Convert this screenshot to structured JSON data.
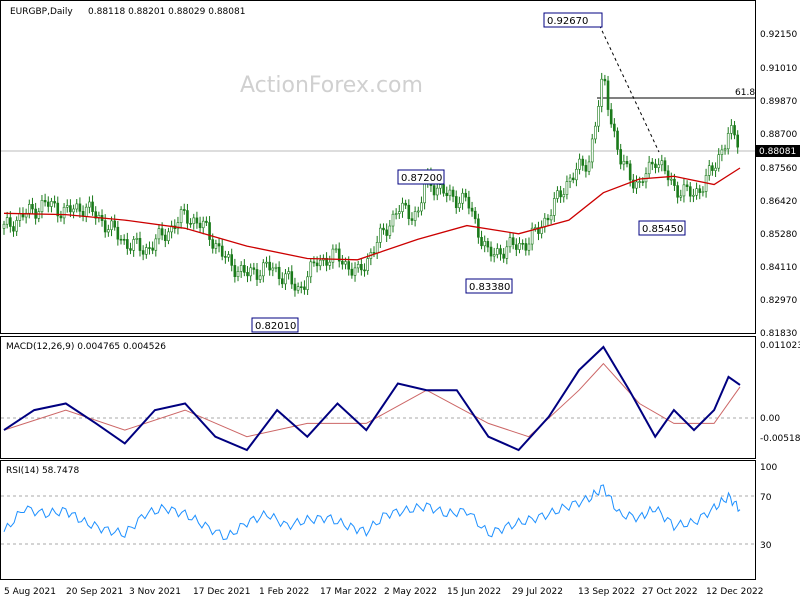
{
  "header": {
    "symbol": "EURGBP,Daily",
    "ohlc": "0.88118 0.88201 0.88029 0.88081"
  },
  "watermark": "ActionForex.com",
  "colors": {
    "candle": "#1a7a1a",
    "ma": "#cc0000",
    "macd": "#000080",
    "signal": "#cc6666",
    "rsi": "#1e90ff",
    "level_line": "#000000",
    "price_tag_bg": "#000000"
  },
  "chart_data": [
    {
      "type": "candlestick",
      "overlays": [
        "moving average (red)"
      ],
      "ylim": [
        0.8118,
        0.9326
      ],
      "y_ticks": [
        "0.92150",
        "0.91010",
        "0.89870",
        "0.88700",
        "0.87560",
        "0.86420",
        "0.85280",
        "0.84110",
        "0.82970",
        "0.81830"
      ],
      "x_ticks": [
        "5 Aug 2021",
        "20 Sep 2021",
        "3 Nov 2021",
        "17 Dec 2021",
        "1 Feb 2022",
        "17 Mar 2022",
        "2 May 2022",
        "15 Jun 2022",
        "29 Jul 2022",
        "13 Sep 2022",
        "27 Oct 2022",
        "12 Dec 2022"
      ],
      "last_price": "0.88081",
      "annotations": [
        {
          "label": "0.92670",
          "date": "2022-09-26",
          "value": 0.9267
        },
        {
          "label": "0.87200",
          "date": "2022-05-26",
          "value": 0.872
        },
        {
          "label": "0.82010",
          "date": "2022-02-25",
          "value": 0.8201
        },
        {
          "label": "0.83380",
          "date": "2022-07-08",
          "value": 0.8338
        },
        {
          "label": "0.85450",
          "date": "2022-11-14",
          "value": 0.8545
        }
      ],
      "fib_level": {
        "label": "61.8",
        "value": 0.8994
      },
      "trendline": {
        "from": {
          "date": "2022-09-26",
          "value": 0.9267
        },
        "to": {
          "date": "2022-11-01",
          "value": 0.883
        }
      },
      "close_series": [
        [
          "2021-08-05",
          0.85
        ],
        [
          "2021-08-19",
          0.855
        ],
        [
          "2021-09-03",
          0.859
        ],
        [
          "2021-09-17",
          0.856
        ],
        [
          "2021-09-30",
          0.858
        ],
        [
          "2021-10-14",
          0.852
        ],
        [
          "2021-10-28",
          0.845
        ],
        [
          "2021-11-11",
          0.842
        ],
        [
          "2021-11-25",
          0.848
        ],
        [
          "2021-12-09",
          0.855
        ],
        [
          "2021-12-23",
          0.85
        ],
        [
          "2022-01-07",
          0.838
        ],
        [
          "2022-01-21",
          0.833
        ],
        [
          "2022-02-04",
          0.836
        ],
        [
          "2022-02-18",
          0.832
        ],
        [
          "2022-02-25",
          0.827
        ],
        [
          "2022-03-11",
          0.838
        ],
        [
          "2022-03-25",
          0.84
        ],
        [
          "2022-04-08",
          0.833
        ],
        [
          "2022-04-22",
          0.845
        ],
        [
          "2022-05-06",
          0.857
        ],
        [
          "2022-05-20",
          0.855
        ],
        [
          "2022-05-26",
          0.868
        ],
        [
          "2022-06-09",
          0.862
        ],
        [
          "2022-06-23",
          0.86
        ],
        [
          "2022-07-08",
          0.84
        ],
        [
          "2022-07-22",
          0.843
        ],
        [
          "2022-08-05",
          0.845
        ],
        [
          "2022-08-19",
          0.855
        ],
        [
          "2022-09-02",
          0.868
        ],
        [
          "2022-09-16",
          0.875
        ],
        [
          "2022-09-26",
          0.905
        ],
        [
          "2022-10-07",
          0.875
        ],
        [
          "2022-10-21",
          0.865
        ],
        [
          "2022-11-01",
          0.876
        ],
        [
          "2022-11-14",
          0.865
        ],
        [
          "2022-11-28",
          0.862
        ],
        [
          "2022-12-12",
          0.872
        ],
        [
          "2022-12-22",
          0.885
        ],
        [
          "2022-12-30",
          0.8808
        ]
      ],
      "ma_series": [
        [
          "2021-08-05",
          0.8555
        ],
        [
          "2021-09-17",
          0.855
        ],
        [
          "2021-10-28",
          0.853
        ],
        [
          "2021-12-09",
          0.85
        ],
        [
          "2022-01-21",
          0.8435
        ],
        [
          "2022-03-04",
          0.839
        ],
        [
          "2022-04-08",
          0.8385
        ],
        [
          "2022-05-20",
          0.846
        ],
        [
          "2022-06-23",
          0.851
        ],
        [
          "2022-07-29",
          0.848
        ],
        [
          "2022-09-02",
          0.853
        ],
        [
          "2022-09-26",
          0.863
        ],
        [
          "2022-10-21",
          0.868
        ],
        [
          "2022-11-14",
          0.869
        ],
        [
          "2022-12-12",
          0.866
        ],
        [
          "2022-12-30",
          0.872
        ]
      ]
    },
    {
      "type": "line",
      "title": "MACD(12,26,9) 0.004765 0.004526",
      "ylim": [
        -0.0062,
        0.012
      ],
      "y_ticks": [
        "0.011023",
        "0.00",
        "-0.005182"
      ],
      "series": [
        {
          "name": "MACD",
          "values": [
            [
              "2021-08-05",
              -0.002
            ],
            [
              "2021-08-26",
              0.001
            ],
            [
              "2021-09-17",
              0.002
            ],
            [
              "2021-10-08",
              -0.001
            ],
            [
              "2021-10-28",
              -0.004
            ],
            [
              "2021-11-18",
              0.001
            ],
            [
              "2021-12-09",
              0.002
            ],
            [
              "2021-12-30",
              -0.003
            ],
            [
              "2022-01-21",
              -0.005
            ],
            [
              "2022-02-11",
              0.001
            ],
            [
              "2022-03-04",
              -0.003
            ],
            [
              "2022-03-25",
              0.002
            ],
            [
              "2022-04-14",
              -0.002
            ],
            [
              "2022-05-06",
              0.005
            ],
            [
              "2022-05-26",
              0.004
            ],
            [
              "2022-06-16",
              0.004
            ],
            [
              "2022-07-08",
              -0.003
            ],
            [
              "2022-07-29",
              -0.005
            ],
            [
              "2022-08-19",
              0.0
            ],
            [
              "2022-09-09",
              0.007
            ],
            [
              "2022-09-26",
              0.0105
            ],
            [
              "2022-10-14",
              0.004
            ],
            [
              "2022-11-01",
              -0.003
            ],
            [
              "2022-11-14",
              0.001
            ],
            [
              "2022-11-28",
              -0.002
            ],
            [
              "2022-12-12",
              0.001
            ],
            [
              "2022-12-22",
              0.006
            ],
            [
              "2022-12-30",
              0.0048
            ]
          ]
        },
        {
          "name": "Signal",
          "values": [
            [
              "2021-08-05",
              -0.002
            ],
            [
              "2021-09-17",
              0.001
            ],
            [
              "2021-10-28",
              -0.002
            ],
            [
              "2021-12-09",
              0.001
            ],
            [
              "2022-01-21",
              -0.003
            ],
            [
              "2022-03-04",
              -0.001
            ],
            [
              "2022-04-14",
              -0.001
            ],
            [
              "2022-05-26",
              0.004
            ],
            [
              "2022-07-08",
              -0.001
            ],
            [
              "2022-08-05",
              -0.003
            ],
            [
              "2022-09-09",
              0.004
            ],
            [
              "2022-09-26",
              0.008
            ],
            [
              "2022-10-21",
              0.002
            ],
            [
              "2022-11-14",
              -0.001
            ],
            [
              "2022-12-12",
              -0.001
            ],
            [
              "2022-12-30",
              0.0045
            ]
          ]
        }
      ]
    },
    {
      "type": "line",
      "title": "RSI(14) 58.7478",
      "ylim": [
        0,
        100
      ],
      "y_ticks": [
        "100",
        "70",
        "30"
      ],
      "reference_lines": [
        70,
        30
      ],
      "series": [
        {
          "name": "RSI",
          "values": [
            [
              "2021-08-05",
              40
            ],
            [
              "2021-08-19",
              60
            ],
            [
              "2021-09-03",
              55
            ],
            [
              "2021-09-17",
              58
            ],
            [
              "2021-09-30",
              48
            ],
            [
              "2021-10-14",
              42
            ],
            [
              "2021-10-28",
              38
            ],
            [
              "2021-11-11",
              55
            ],
            [
              "2021-11-25",
              60
            ],
            [
              "2021-12-09",
              55
            ],
            [
              "2021-12-23",
              45
            ],
            [
              "2022-01-07",
              35
            ],
            [
              "2022-01-21",
              48
            ],
            [
              "2022-02-04",
              55
            ],
            [
              "2022-02-18",
              45
            ],
            [
              "2022-03-04",
              50
            ],
            [
              "2022-03-18",
              52
            ],
            [
              "2022-04-01",
              45
            ],
            [
              "2022-04-14",
              40
            ],
            [
              "2022-04-28",
              55
            ],
            [
              "2022-05-12",
              58
            ],
            [
              "2022-05-26",
              62
            ],
            [
              "2022-06-09",
              55
            ],
            [
              "2022-06-23",
              58
            ],
            [
              "2022-07-08",
              38
            ],
            [
              "2022-07-22",
              45
            ],
            [
              "2022-08-05",
              50
            ],
            [
              "2022-08-19",
              55
            ],
            [
              "2022-09-02",
              62
            ],
            [
              "2022-09-16",
              68
            ],
            [
              "2022-09-26",
              78
            ],
            [
              "2022-10-07",
              55
            ],
            [
              "2022-10-21",
              52
            ],
            [
              "2022-11-01",
              60
            ],
            [
              "2022-11-14",
              45
            ],
            [
              "2022-11-28",
              48
            ],
            [
              "2022-12-12",
              60
            ],
            [
              "2022-12-22",
              70
            ],
            [
              "2022-12-30",
              58.75
            ]
          ]
        }
      ]
    }
  ]
}
